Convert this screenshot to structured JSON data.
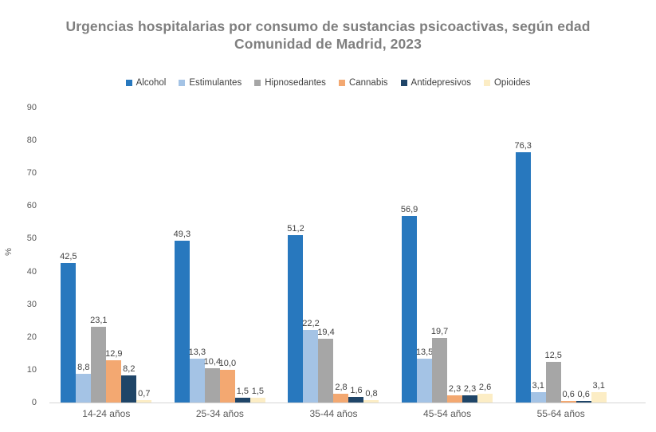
{
  "title": {
    "line1": "Urgencias hospitalarias por consumo de sustancias psicoactivas, según edad",
    "line2": "Comunidad de Madrid, 2023"
  },
  "chart_data": {
    "type": "bar",
    "title": "Urgencias hospitalarias por consumo de sustancias psicoactivas, según edad",
    "subtitle": "Comunidad de Madrid, 2023",
    "categories": [
      "14-24 años",
      "25-34 años",
      "35-44 años",
      "45-54 años",
      "55-64 años"
    ],
    "series": [
      {
        "name": "Alcohol",
        "color": "#2878BE",
        "values": [
          42.5,
          49.3,
          51.2,
          56.9,
          76.3
        ]
      },
      {
        "name": "Estimulantes",
        "color": "#A4C3E5",
        "values": [
          8.8,
          13.3,
          22.2,
          13.5,
          3.1
        ]
      },
      {
        "name": "Hipnosedantes",
        "color": "#A6A6A6",
        "values": [
          23.1,
          10.4,
          19.4,
          19.7,
          12.5
        ]
      },
      {
        "name": "Cannabis",
        "color": "#F3A871",
        "values": [
          12.9,
          10.0,
          2.8,
          2.3,
          0.6
        ]
      },
      {
        "name": "Antidepresivos",
        "color": "#1F4568",
        "values": [
          8.2,
          1.5,
          1.6,
          2.3,
          0.6
        ]
      },
      {
        "name": "Opioides",
        "color": "#FCEDC5",
        "values": [
          0.7,
          1.5,
          0.8,
          2.6,
          3.1
        ]
      }
    ],
    "ylabel": "%",
    "ylim": [
      0,
      90
    ],
    "ytick_step": 10,
    "grid": false,
    "legend_position": "top",
    "decimal_separator": ",",
    "data_labels": true,
    "axis_line_color": "#d6d6d6"
  }
}
